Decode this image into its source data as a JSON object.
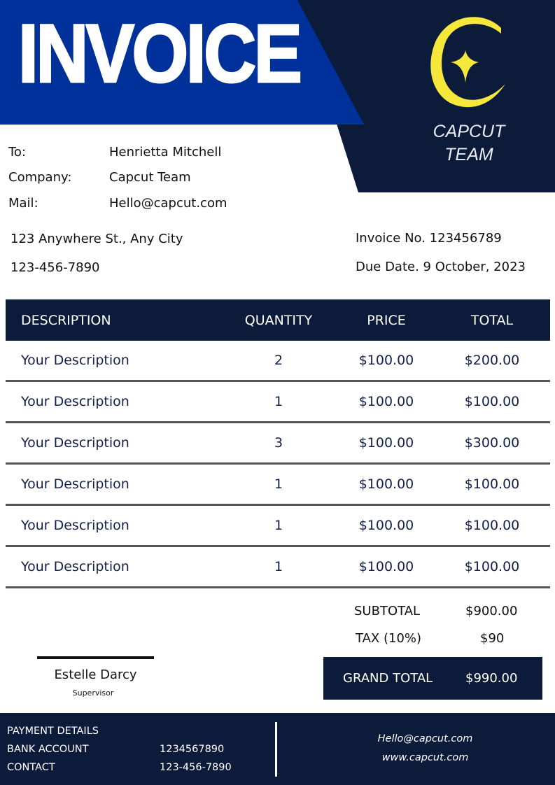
{
  "header": {
    "title": "INVOICE",
    "brand_line1": "CAPCUT",
    "brand_line2": "TEAM",
    "colors": {
      "blue": "#00309a",
      "navy": "#0d1b3a",
      "logo": "#f5e83a"
    }
  },
  "recipient": {
    "to_label": "To:",
    "to": "Henrietta Mitchell",
    "company_label": "Company:",
    "company": "Capcut Team",
    "mail_label": "Mail:",
    "mail": "Hello@capcut.com"
  },
  "address": "123 Anywhere St., Any City",
  "phone": "123-456-7890",
  "invoice_no": "Invoice No. 123456789",
  "due_date": "Due Date. 9 October, 2023",
  "table": {
    "headers": [
      "DESCRIPTION",
      "QUANTITY",
      "PRICE",
      "TOTAL"
    ],
    "rows": [
      [
        "Your Description",
        "2",
        "$100.00",
        "$200.00"
      ],
      [
        "Your Description",
        "1",
        "$100.00",
        "$100.00"
      ],
      [
        "Your Description",
        "3",
        "$100.00",
        "$300.00"
      ],
      [
        "Your Description",
        "1",
        "$100.00",
        "$100.00"
      ],
      [
        "Your Description",
        "1",
        "$100.00",
        "$100.00"
      ],
      [
        "Your Description",
        "1",
        "$100.00",
        "$100.00"
      ]
    ]
  },
  "totals": {
    "subtotal_label": "SUBTOTAL",
    "subtotal": "$900.00",
    "tax_label": "TAX (10%)",
    "tax": "$90",
    "grand_label": "GRAND TOTAL",
    "grand": "$990.00"
  },
  "signature": {
    "name": "Estelle Darcy",
    "role": "Supervisor"
  },
  "footer": {
    "payment_label": "PAYMENT DETAILS",
    "bank_label": "BANK ACCOUNT",
    "bank": "1234567890",
    "contact_label": "CONTACT",
    "contact": "123-456-7890",
    "email": "Hello@capcut.com",
    "website": "www.capcut.com"
  }
}
